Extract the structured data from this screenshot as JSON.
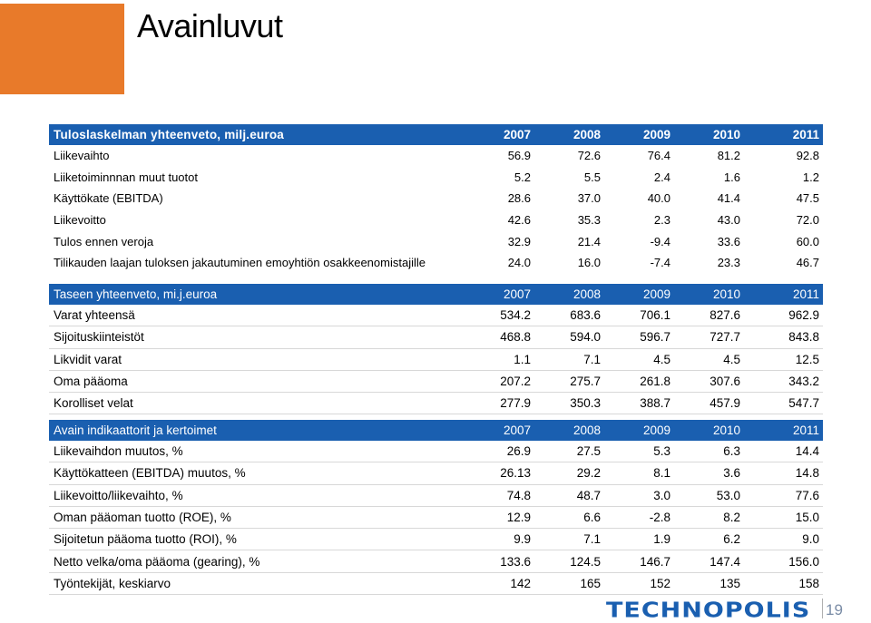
{
  "title": "Avainluvut",
  "table1": {
    "header": "Tuloslaskelman  yhteenveto,  milj.euroa",
    "years": [
      "2007",
      "2008",
      "2009",
      "2010",
      "2011"
    ],
    "rows": [
      {
        "label": "Liikevaihto",
        "values": [
          "56.9",
          "72.6",
          "76.4",
          "81.2",
          "92.8"
        ]
      },
      {
        "label": "Liiketoiminnnan muut tuotot",
        "values": [
          "5.2",
          "5.5",
          "2.4",
          "1.6",
          "1.2"
        ]
      },
      {
        "label": "Käyttökate (EBITDA)",
        "values": [
          "28.6",
          "37.0",
          "40.0",
          "41.4",
          "47.5"
        ]
      },
      {
        "label": "Liikevoitto",
        "values": [
          "42.6",
          "35.3",
          "2.3",
          "43.0",
          "72.0"
        ]
      },
      {
        "label": "Tulos ennen veroja",
        "values": [
          "32.9",
          "21.4",
          "-9.4",
          "33.6",
          "60.0"
        ]
      },
      {
        "label": "Tilikauden laajan tuloksen jakautuminen emoyhtiön osakkeenomistajille",
        "values": [
          "24.0",
          "16.0",
          "-7.4",
          "23.3",
          "46.7"
        ]
      }
    ]
  },
  "table2": {
    "header": "Taseen yhteenveto,  mi.j.euroa",
    "years": [
      "2007",
      "2008",
      "2009",
      "2010",
      "2011"
    ],
    "rows": [
      {
        "label": "Varat yhteensä",
        "values": [
          "534.2",
          "683.6",
          "706.1",
          "827.6",
          "962.9"
        ]
      },
      {
        "label": "Sijoituskiinteistöt",
        "values": [
          "468.8",
          "594.0",
          "596.7",
          "727.7",
          "843.8"
        ]
      },
      {
        "label": "Likvidit varat",
        "values": [
          "1.1",
          "7.1",
          "4.5",
          "4.5",
          "12.5"
        ]
      },
      {
        "label": "Oma pääoma",
        "values": [
          "207.2",
          "275.7",
          "261.8",
          "307.6",
          "343.2"
        ]
      },
      {
        "label": "Korolliset velat",
        "values": [
          "277.9",
          "350.3",
          "388.7",
          "457.9",
          "547.7"
        ]
      }
    ]
  },
  "table3": {
    "header": "Avain indikaattorit ja kertoimet",
    "years": [
      "2007",
      "2008",
      "2009",
      "2010",
      "2011"
    ],
    "rows": [
      {
        "label": "Liikevaihdon muutos, %",
        "values": [
          "26.9",
          "27.5",
          "5.3",
          "6.3",
          "14.4"
        ]
      },
      {
        "label": "Käyttökatteen (EBITDA) muutos, %",
        "values": [
          "26.13",
          "29.2",
          "8.1",
          "3.6",
          "14.8"
        ]
      },
      {
        "label": "Liikevoitto/liikevaihto, %",
        "values": [
          "74.8",
          "48.7",
          "3.0",
          "53.0",
          "77.6"
        ]
      },
      {
        "label": "Oman pääoman tuotto (ROE), %",
        "values": [
          "12.9",
          "6.6",
          "-2.8",
          "8.2",
          "15.0"
        ]
      },
      {
        "label": "Sijoitetun pääoma tuotto (ROI), %",
        "values": [
          "9.9",
          "7.1",
          "1.9",
          "6.2",
          "9.0"
        ]
      },
      {
        "label": "Netto velka/oma pääoma (gearing), %",
        "values": [
          "133.6",
          "124.5",
          "146.7",
          "147.4",
          "156.0"
        ]
      },
      {
        "label": "Työntekijät, keskiarvo",
        "values": [
          "142",
          "165",
          "152",
          "135",
          "158"
        ]
      }
    ]
  },
  "footer": {
    "logo": "TECHNOPOLIS",
    "page_number": "19"
  },
  "colors": {
    "accent_orange": "#e87a2a",
    "header_blue": "#1a5fb0"
  }
}
